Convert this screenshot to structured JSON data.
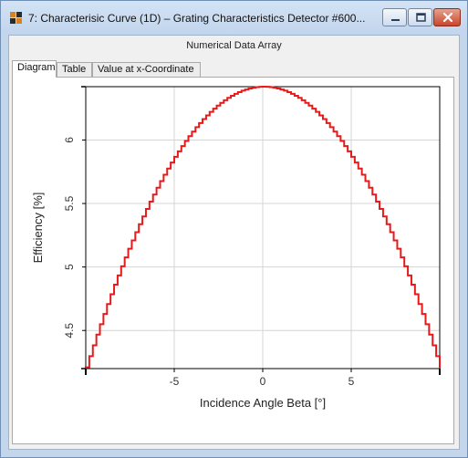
{
  "window": {
    "title": "7: Characterisic Curve (1D) – Grating Characteristics Detector #600...",
    "subtitle": "Numerical Data Array",
    "controls": {
      "minimize": "minimize",
      "maximize": "maximize",
      "close": "close"
    }
  },
  "tabs": [
    {
      "label": "Diagram",
      "active": true
    },
    {
      "label": "Table",
      "active": false
    },
    {
      "label": "Value at x-Coordinate",
      "active": false
    }
  ],
  "colors": {
    "curve": "#e8191a",
    "grid": "#d4d4d4",
    "axis": "#000000",
    "titlebar": "#c8daf0"
  },
  "chart_data": {
    "type": "line",
    "step": true,
    "xlabel": "Incidence Angle Beta [°]",
    "ylabel": "Efficiency [%]",
    "xlim": [
      -10,
      10
    ],
    "ylim": [
      4.2,
      6.42
    ],
    "xticks": [
      "-5",
      "0",
      "5"
    ],
    "xtick_values": [
      -5,
      0,
      5
    ],
    "yticks": [
      "4.5",
      "5",
      "5.5",
      "6"
    ],
    "ytick_values": [
      4.5,
      5,
      5.5,
      6
    ],
    "grid": true,
    "series": [
      {
        "peak_x": 0,
        "peak_y": 6.42,
        "curvature": 0.0221,
        "x_start": -10,
        "x_end": 10,
        "x_step": 0.2
      }
    ]
  }
}
